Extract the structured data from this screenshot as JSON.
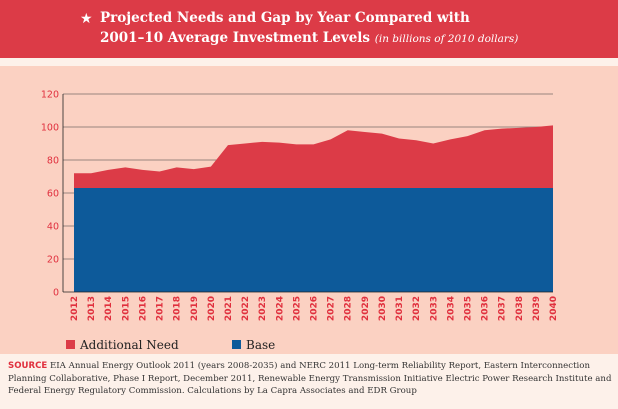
{
  "header": {
    "star": "★",
    "title_line1": "Projected Needs and Gap by Year Compared with",
    "title_line2": "2001–10 Average Investment Levels",
    "subtitle": "(in billions of 2010 dollars)"
  },
  "legend": {
    "additional_label": "Additional Need",
    "base_label": "Base"
  },
  "source": {
    "label": "SOURCE",
    "text": "EIA Annual Energy Outlook 2011 (years 2008-2035) and NERC 2011 Long-term Reliability Report, Eastern Interconnection Planning Collaborative, Phase I Report, December 2011, Renewable Energy Transmission Initiative Electric Power Research Institute and Federal Energy Regulatory Commission. Calculations by La Capra Associates and EDR Group"
  },
  "colors": {
    "header_bg": "#dc3b47",
    "panel_bg": "#fbd1c2",
    "additional_need": "#dc3b47",
    "base": "#0d5a9a",
    "tick_text": "#e0303e"
  },
  "chart_data": {
    "type": "area",
    "stacked": true,
    "x": [
      2012,
      2013,
      2014,
      2015,
      2016,
      2017,
      2018,
      2019,
      2020,
      2021,
      2022,
      2023,
      2024,
      2025,
      2026,
      2027,
      2028,
      2029,
      2030,
      2031,
      2032,
      2033,
      2034,
      2035,
      2036,
      2037,
      2038,
      2039,
      2040
    ],
    "x_tick_labels": [
      "2012",
      "2013",
      "2014",
      "2015",
      "2016",
      "2017",
      "2018",
      "2019",
      "2020",
      "2021",
      "2022",
      "2023",
      "2024",
      "2025",
      "2026",
      "2027",
      "2028",
      "2029",
      "2030",
      "2031",
      "2032",
      "2033",
      "2034",
      "2035",
      "2036",
      "2037",
      "2038",
      "2039",
      "2040"
    ],
    "series": [
      {
        "name": "Base",
        "color": "#0d5a9a",
        "values": [
          63,
          63,
          63,
          63,
          63,
          63,
          63,
          63,
          63,
          63,
          63,
          63,
          63,
          63,
          63,
          63,
          63,
          63,
          63,
          63,
          63,
          63,
          63,
          63,
          63,
          63,
          63,
          63,
          63
        ]
      },
      {
        "name": "Additional Need",
        "color": "#dc3b47",
        "values": [
          9,
          9,
          11,
          12.5,
          11,
          10,
          12.5,
          11.5,
          13,
          26,
          27,
          28,
          27.5,
          26.5,
          26.5,
          29.5,
          35,
          34,
          33,
          30,
          29,
          27,
          29.5,
          31.5,
          35,
          36,
          36.5,
          37,
          38
        ]
      }
    ],
    "totals": [
      72,
      72,
      74,
      75.5,
      74,
      73,
      75.5,
      74.5,
      76,
      89,
      90,
      91,
      90.5,
      89.5,
      89.5,
      92.5,
      98,
      97,
      96,
      93,
      92,
      90,
      92.5,
      94.5,
      98,
      99,
      99.5,
      100,
      101
    ],
    "y_ticks": [
      0,
      20,
      40,
      60,
      80,
      100,
      120
    ],
    "ylim": [
      0,
      120
    ],
    "grid": true,
    "legend_position": "bottom-left"
  }
}
